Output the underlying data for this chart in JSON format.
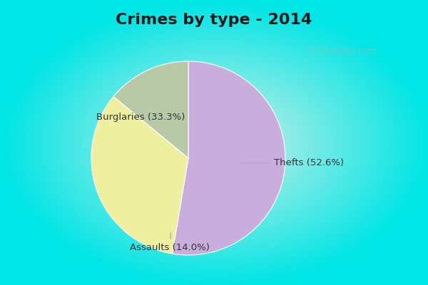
{
  "title": "Crimes by type - 2014",
  "slices": [
    {
      "label": "Thefts (52.6%)",
      "value": 52.6,
      "color": "#c9aedd"
    },
    {
      "label": "Burglaries (33.3%)",
      "value": 33.3,
      "color": "#eef0a0"
    },
    {
      "label": "Assaults (14.0%)",
      "value": 14.0,
      "color": "#b8c9a8"
    }
  ],
  "border_color": "#00e5e5",
  "bg_outer": "#00e5e5",
  "bg_inner": "#cff0e8",
  "title_fontsize": 16,
  "title_color": "#1a1a1a",
  "label_fontsize": 9.5,
  "watermark": "ⓘ City-Data.com",
  "startangle": 90
}
